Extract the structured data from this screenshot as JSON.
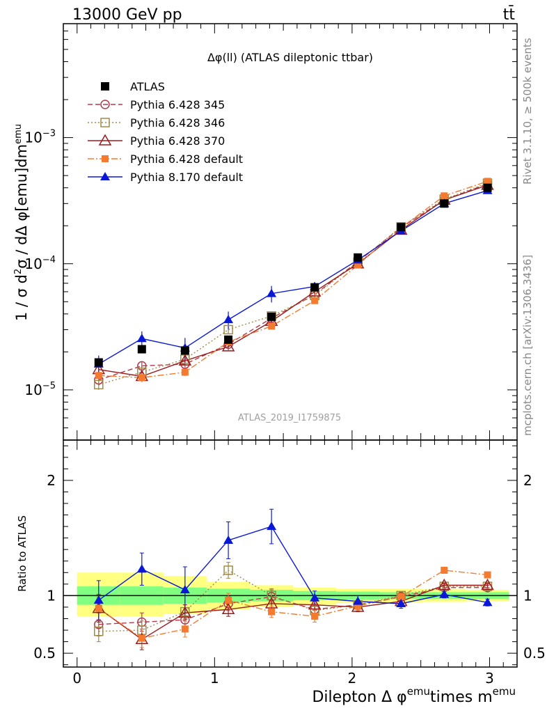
{
  "header": {
    "left": "13000 GeV pp",
    "right": "tt̄"
  },
  "side_labels": {
    "rivet": "Rivet 3.1.10, ≥ 500k events",
    "mcplots": "mcplots.cern.ch [arXiv:1306.3436]"
  },
  "chart_data": {
    "type": "line",
    "title": "Δφ(ll) (ATLAS dileptonic ttbar)",
    "watermark": "ATLAS_2019_I1759875",
    "xlabel": "Dilepton Δ φ^emu times m^emu",
    "ylabel": "1 / σ  d²σ / dΔ φ[emu]dm^emu",
    "ratio_ylabel": "Ratio to ATLAS",
    "xlim": [
      -0.1,
      3.2
    ],
    "ylim_main": [
      4e-06,
      0.008
    ],
    "ylim_ratio": [
      0.38,
      2.35
    ],
    "yscale_main": "log",
    "legend_position": "top-left",
    "x_ticks": [
      0,
      1,
      2,
      3
    ],
    "x_tick_labels": [
      "0",
      "1",
      "2",
      "3"
    ],
    "main_y_ticks": [
      1e-05,
      0.0001,
      0.001
    ],
    "main_y_tick_labels": [
      [
        "10",
        "−5"
      ],
      [
        "10",
        "−4"
      ],
      [
        "10",
        "−3"
      ]
    ],
    "ratio_y_ticks": [
      0.5,
      1,
      2
    ],
    "ratio_y_tick_labels": [
      "0.5",
      "1",
      "2"
    ],
    "x": [
      0.157,
      0.471,
      0.785,
      1.1,
      1.414,
      1.728,
      2.042,
      2.356,
      2.67,
      2.985
    ],
    "band_inner": [
      [
        0.92,
        1.08
      ],
      [
        0.92,
        1.08
      ],
      [
        0.93,
        1.07
      ],
      [
        0.94,
        1.06
      ],
      [
        0.95,
        1.05
      ],
      [
        0.96,
        1.04
      ],
      [
        0.965,
        1.035
      ],
      [
        0.97,
        1.03
      ],
      [
        0.97,
        1.03
      ],
      [
        0.97,
        1.03
      ]
    ],
    "band_outer": [
      [
        0.82,
        1.2
      ],
      [
        0.82,
        1.2
      ],
      [
        0.84,
        1.17
      ],
      [
        0.88,
        1.12
      ],
      [
        0.9,
        1.09
      ],
      [
        0.92,
        1.07
      ],
      [
        0.935,
        1.06
      ],
      [
        0.94,
        1.06
      ],
      [
        0.945,
        1.055
      ],
      [
        0.95,
        1.05
      ]
    ],
    "data": {
      "name": "ATLAS",
      "color": "#000000",
      "values": [
        1.65e-05,
        2.1e-05,
        2.05e-05,
        2.5e-05,
        3.8e-05,
        6.5e-05,
        0.000112,
        0.000195,
        0.0003,
        0.0004
      ]
    },
    "series": [
      {
        "name": "Pythia 6.428 345",
        "color": "#b5384a",
        "marker": "circle-open",
        "dash": "7,4",
        "values": [
          1.2e-05,
          1.55e-05,
          1.6e-05,
          2.3e-05,
          3.7e-05,
          5.7e-05,
          0.000104,
          0.000193,
          0.00032,
          0.00043
        ],
        "ratio": [
          0.75,
          0.77,
          0.79,
          0.93,
          0.99,
          0.88,
          0.92,
          0.99,
          1.07,
          1.07
        ],
        "ratio_err": [
          0.1,
          0.08,
          0.06,
          0.06,
          0.06,
          0.05,
          0.04,
          0.03,
          0.02,
          0.02
        ]
      },
      {
        "name": "Pythia 6.428 346",
        "color": "#9e8a48",
        "marker": "square-open",
        "dash": "2,3",
        "values": [
          1.1e-05,
          1.38e-05,
          1.75e-05,
          3e-05,
          3.85e-05,
          5.6e-05,
          0.000103,
          0.000196,
          0.000325,
          0.000435
        ],
        "ratio": [
          0.69,
          0.7,
          0.86,
          1.22,
          1.0,
          0.87,
          0.92,
          1.0,
          1.08,
          1.08
        ],
        "ratio_err": [
          0.09,
          0.08,
          0.06,
          0.07,
          0.06,
          0.05,
          0.04,
          0.03,
          0.02,
          0.02
        ]
      },
      {
        "name": "Pythia 6.428 370",
        "color": "#9b1b1b",
        "marker": "triangle-open",
        "dash": "",
        "values": [
          1.45e-05,
          1.28e-05,
          1.7e-05,
          2.2e-05,
          3.5e-05,
          6e-05,
          0.0001,
          0.000185,
          0.00032,
          0.00042
        ],
        "ratio": [
          0.89,
          0.62,
          0.85,
          0.88,
          0.93,
          0.92,
          0.9,
          0.95,
          1.09,
          1.09
        ],
        "ratio_err": [
          0.12,
          0.09,
          0.07,
          0.06,
          0.06,
          0.05,
          0.04,
          0.03,
          0.02,
          0.02
        ]
      },
      {
        "name": "Pythia 6.428 default",
        "color": "#f47a30",
        "marker": "square-filled",
        "dash": "9,3,2,3",
        "values": [
          1.3e-05,
          1.25e-05,
          1.38e-05,
          2.4e-05,
          3.2e-05,
          5.1e-05,
          9.8e-05,
          0.000193,
          0.000345,
          0.00045
        ],
        "ratio": [
          0.89,
          0.63,
          0.71,
          0.96,
          0.86,
          0.82,
          0.91,
          0.99,
          1.22,
          1.18
        ],
        "ratio_err": [
          0.1,
          0.08,
          0.07,
          0.06,
          0.05,
          0.05,
          0.04,
          0.03,
          0.02,
          0.02
        ]
      },
      {
        "name": "Pythia 8.170 default",
        "color": "#0a18d6",
        "marker": "triangle-filled",
        "dash": "",
        "values": [
          1.6e-05,
          2.55e-05,
          2.15e-05,
          3.6e-05,
          5.8e-05,
          6.6e-05,
          0.000107,
          0.000182,
          0.0003,
          0.00038
        ],
        "ratio": [
          0.96,
          1.23,
          1.05,
          1.48,
          1.6,
          0.98,
          0.95,
          0.93,
          1.01,
          0.94
        ],
        "ratio_err": [
          0.17,
          0.14,
          0.2,
          0.16,
          0.15,
          0.06,
          0.05,
          0.04,
          0.03,
          0.03
        ]
      }
    ]
  }
}
